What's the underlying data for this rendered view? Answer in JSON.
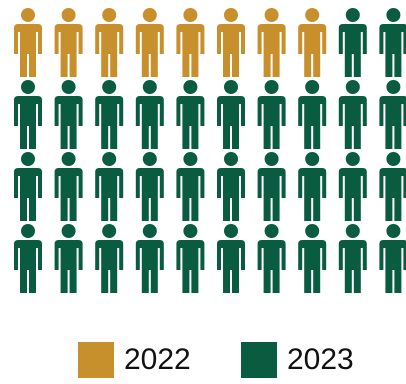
{
  "chart_data": {
    "type": "pictogram",
    "icon": "person-icon",
    "rows": 4,
    "columns": 10,
    "series": [
      {
        "name": "2022",
        "count": 8,
        "color": "#C8902C"
      },
      {
        "name": "2023",
        "count": 32,
        "color": "#0A5C41"
      }
    ],
    "legend": "bottom"
  }
}
